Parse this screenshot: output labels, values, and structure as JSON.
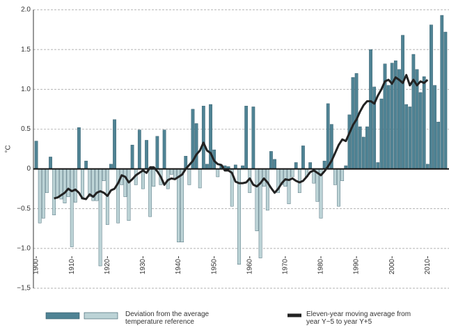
{
  "chart_data": {
    "type": "bar",
    "y_label": "°C",
    "xlim": [
      1899.2,
      2016
    ],
    "xticks": [
      1900,
      1910,
      1920,
      1930,
      1940,
      1950,
      1960,
      1970,
      1980,
      1990,
      2000,
      2010
    ],
    "ylim": [
      -1.5,
      2.0
    ],
    "yticks": [
      {
        "value": 2.0,
        "label": "2.0"
      },
      1.5,
      {
        "value": 1.0,
        "label": "1.0"
      },
      0.5,
      0,
      {
        "value": -0.5,
        "label": "−0.5"
      },
      {
        "value": -1.0,
        "label": "−1.0"
      },
      {
        "value": -1.5,
        "label": "−1,5"
      }
    ],
    "grid": true,
    "series": [
      {
        "name": "Deviation from the average temperature reference",
        "colors": [
          "#4f8394",
          "#bcd3d6"
        ],
        "x": [
          1900,
          1901,
          1902,
          1903,
          1904,
          1905,
          1906,
          1907,
          1908,
          1909,
          1910,
          1911,
          1912,
          1913,
          1914,
          1915,
          1916,
          1917,
          1918,
          1919,
          1920,
          1921,
          1922,
          1923,
          1924,
          1925,
          1926,
          1927,
          1928,
          1929,
          1930,
          1931,
          1932,
          1933,
          1934,
          1935,
          1936,
          1937,
          1938,
          1939,
          1940,
          1941,
          1942,
          1943,
          1944,
          1945,
          1946,
          1947,
          1948,
          1949,
          1950,
          1951,
          1952,
          1953,
          1954,
          1955,
          1956,
          1957,
          1958,
          1959,
          1960,
          1961,
          1962,
          1963,
          1964,
          1965,
          1966,
          1967,
          1968,
          1969,
          1970,
          1971,
          1972,
          1973,
          1974,
          1975,
          1976,
          1977,
          1978,
          1979,
          1980,
          1981,
          1982,
          1983,
          1984,
          1985,
          1986,
          1987,
          1988,
          1989,
          1990,
          1991,
          1992,
          1993,
          1994,
          1995,
          1996,
          1997,
          1998,
          1999,
          2000,
          2001,
          2002,
          2003,
          2004,
          2005,
          2006,
          2007,
          2008,
          2009,
          2010,
          2011,
          2012,
          2013,
          2014,
          2015
        ],
        "values": [
          0.35,
          -0.68,
          -0.62,
          -0.3,
          0.15,
          -0.58,
          -0.35,
          -0.38,
          -0.43,
          -0.35,
          -0.98,
          -0.42,
          0.52,
          -0.38,
          0.1,
          -0.35,
          -0.4,
          -0.4,
          -1.22,
          -0.15,
          -0.7,
          0.06,
          0.62,
          -0.68,
          -0.2,
          -0.35,
          -0.65,
          0.3,
          -0.2,
          0.49,
          -0.25,
          0.36,
          -0.6,
          -0.22,
          0.41,
          -0.2,
          0.49,
          -0.25,
          -0.07,
          -0.12,
          -0.92,
          -0.92,
          0.16,
          -0.2,
          0.75,
          0.57,
          -0.24,
          0.79,
          0.06,
          0.81,
          0.24,
          -0.1,
          0.05,
          0.04,
          0.03,
          -0.47,
          0.05,
          -1.2,
          0.04,
          0.79,
          -0.3,
          0.78,
          -0.78,
          -1.12,
          -0.22,
          -0.52,
          0.22,
          0.12,
          -0.3,
          -0.2,
          -0.22,
          -0.44,
          -0.1,
          0.08,
          -0.3,
          0.29,
          -0.1,
          0.08,
          -0.18,
          -0.41,
          -0.62,
          0.1,
          0.82,
          0.56,
          -0.2,
          -0.47,
          -0.15,
          0.04,
          0.68,
          1.15,
          1.2,
          0.53,
          0.4,
          0.53,
          1.5,
          1.03,
          0.08,
          0.88,
          1.32,
          1.05,
          1.33,
          1.36,
          1.25,
          1.68,
          0.81,
          0.78,
          1.44,
          1.25,
          0.96,
          1.16,
          0.06,
          1.81,
          1.05,
          0.59,
          1.93,
          1.72
        ]
      },
      {
        "name": "Eleven-year moving average from year Y−5 to year Y+5",
        "type": "line",
        "color": "#222222",
        "x": [
          1905,
          1906,
          1907,
          1908,
          1909,
          1910,
          1911,
          1912,
          1913,
          1914,
          1915,
          1916,
          1917,
          1918,
          1919,
          1920,
          1921,
          1922,
          1923,
          1924,
          1925,
          1926,
          1927,
          1928,
          1929,
          1930,
          1931,
          1932,
          1933,
          1934,
          1935,
          1936,
          1937,
          1938,
          1939,
          1940,
          1941,
          1942,
          1943,
          1944,
          1945,
          1946,
          1947,
          1948,
          1949,
          1950,
          1951,
          1952,
          1953,
          1954,
          1955,
          1956,
          1957,
          1958,
          1959,
          1960,
          1961,
          1962,
          1963,
          1964,
          1965,
          1966,
          1967,
          1968,
          1969,
          1970,
          1971,
          1972,
          1973,
          1974,
          1975,
          1976,
          1977,
          1978,
          1979,
          1980,
          1981,
          1982,
          1983,
          1984,
          1985,
          1986,
          1987,
          1988,
          1989,
          1990,
          1991,
          1992,
          1993,
          1994,
          1995,
          1996,
          1997,
          1998,
          1999,
          2000,
          2001,
          2002,
          2003,
          2004,
          2005,
          2006,
          2007,
          2008,
          2009,
          2010
        ],
        "values": [
          -0.37,
          -0.36,
          -0.33,
          -0.3,
          -0.25,
          -0.28,
          -0.26,
          -0.3,
          -0.37,
          -0.38,
          -0.32,
          -0.35,
          -0.3,
          -0.28,
          -0.3,
          -0.34,
          -0.27,
          -0.25,
          -0.18,
          -0.08,
          -0.1,
          -0.17,
          -0.13,
          -0.08,
          -0.05,
          -0.02,
          -0.05,
          0.02,
          0.02,
          -0.03,
          -0.1,
          -0.2,
          -0.14,
          -0.12,
          -0.13,
          -0.1,
          -0.07,
          0.0,
          0.05,
          0.1,
          0.18,
          0.23,
          0.33,
          0.23,
          0.2,
          0.1,
          0.06,
          0.05,
          -0.02,
          -0.02,
          -0.05,
          -0.16,
          -0.18,
          -0.18,
          -0.17,
          -0.12,
          -0.2,
          -0.22,
          -0.18,
          -0.12,
          -0.17,
          -0.24,
          -0.3,
          -0.25,
          -0.18,
          -0.13,
          -0.14,
          -0.12,
          -0.15,
          -0.17,
          -0.15,
          -0.1,
          -0.04,
          -0.02,
          -0.05,
          -0.08,
          -0.03,
          0.03,
          0.1,
          0.2,
          0.3,
          0.37,
          0.35,
          0.45,
          0.55,
          0.62,
          0.72,
          0.8,
          0.85,
          0.85,
          0.82,
          0.92,
          1.0,
          1.1,
          1.12,
          1.07,
          1.15,
          1.12,
          1.08,
          1.18,
          1.05,
          1.12,
          1.05,
          1.1,
          1.08,
          1.12
        ]
      }
    ]
  }
}
